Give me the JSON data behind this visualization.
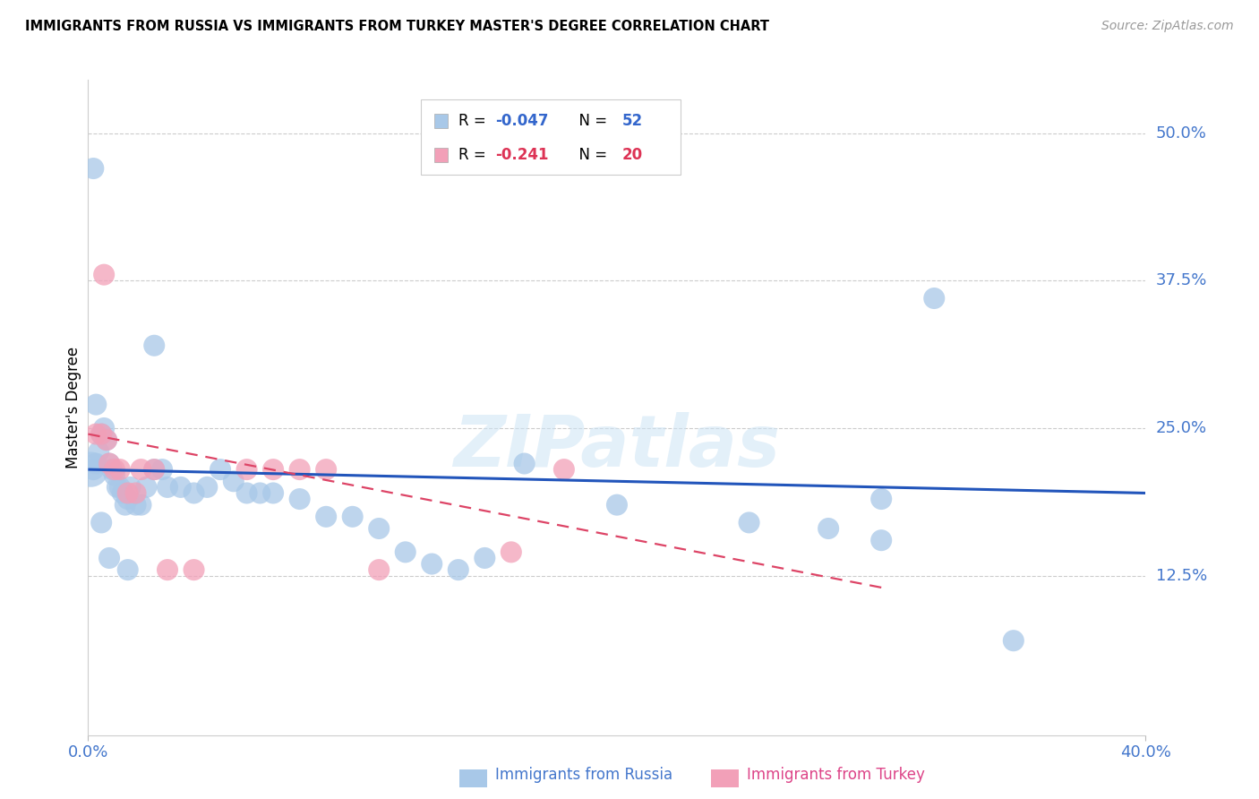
{
  "title": "IMMIGRANTS FROM RUSSIA VS IMMIGRANTS FROM TURKEY MASTER'S DEGREE CORRELATION CHART",
  "source": "Source: ZipAtlas.com",
  "ylabel": "Master's Degree",
  "right_yticks": [
    "50.0%",
    "37.5%",
    "25.0%",
    "12.5%"
  ],
  "right_ytick_vals": [
    0.5,
    0.375,
    0.25,
    0.125
  ],
  "russia_color": "#a8c8e8",
  "turkey_color": "#f2a0b8",
  "russia_line_color": "#2255bb",
  "turkey_line_color": "#dd4466",
  "watermark_text": "ZIPatlas",
  "xlim": [
    0.0,
    0.4
  ],
  "ylim": [
    -0.01,
    0.545
  ],
  "russia_R": -0.047,
  "russia_N": 52,
  "turkey_R": -0.241,
  "turkey_N": 20,
  "russia_x": [
    0.001,
    0.002,
    0.003,
    0.004,
    0.005,
    0.006,
    0.007,
    0.008,
    0.009,
    0.01,
    0.011,
    0.012,
    0.013,
    0.014,
    0.015,
    0.016,
    0.018,
    0.02,
    0.022,
    0.025,
    0.028,
    0.03,
    0.035,
    0.04,
    0.045,
    0.05,
    0.055,
    0.06,
    0.065,
    0.07,
    0.08,
    0.09,
    0.1,
    0.11,
    0.12,
    0.13,
    0.14,
    0.15,
    0.165,
    0.2,
    0.25,
    0.28,
    0.3,
    0.32,
    0.35,
    0.002,
    0.003,
    0.005,
    0.008,
    0.015,
    0.025,
    0.3
  ],
  "russia_y": [
    0.215,
    0.215,
    0.22,
    0.23,
    0.245,
    0.25,
    0.24,
    0.22,
    0.215,
    0.21,
    0.2,
    0.2,
    0.195,
    0.185,
    0.19,
    0.2,
    0.185,
    0.185,
    0.2,
    0.215,
    0.215,
    0.2,
    0.2,
    0.195,
    0.2,
    0.215,
    0.205,
    0.195,
    0.195,
    0.195,
    0.19,
    0.175,
    0.175,
    0.165,
    0.145,
    0.135,
    0.13,
    0.14,
    0.22,
    0.185,
    0.17,
    0.165,
    0.155,
    0.36,
    0.07,
    0.47,
    0.27,
    0.17,
    0.14,
    0.13,
    0.32,
    0.19
  ],
  "russia_sizes": [
    800,
    300,
    300,
    300,
    300,
    300,
    300,
    300,
    300,
    300,
    300,
    300,
    300,
    300,
    300,
    300,
    300,
    300,
    300,
    300,
    300,
    300,
    300,
    300,
    300,
    300,
    300,
    300,
    300,
    300,
    300,
    300,
    300,
    300,
    300,
    300,
    300,
    300,
    300,
    300,
    300,
    300,
    300,
    300,
    300,
    300,
    300,
    300,
    300,
    300,
    300,
    300
  ],
  "turkey_x": [
    0.003,
    0.005,
    0.006,
    0.007,
    0.008,
    0.01,
    0.012,
    0.015,
    0.018,
    0.02,
    0.025,
    0.03,
    0.04,
    0.06,
    0.07,
    0.08,
    0.09,
    0.11,
    0.16,
    0.18
  ],
  "turkey_y": [
    0.245,
    0.245,
    0.38,
    0.24,
    0.22,
    0.215,
    0.215,
    0.195,
    0.195,
    0.215,
    0.215,
    0.13,
    0.13,
    0.215,
    0.215,
    0.215,
    0.215,
    0.13,
    0.145,
    0.215
  ],
  "turkey_sizes": [
    300,
    300,
    300,
    300,
    300,
    300,
    300,
    300,
    300,
    300,
    300,
    300,
    300,
    300,
    300,
    300,
    300,
    300,
    300,
    300
  ],
  "russia_line_x": [
    0.0,
    0.4
  ],
  "russia_line_y": [
    0.215,
    0.195
  ],
  "turkey_line_x": [
    0.0,
    0.3
  ],
  "turkey_line_y": [
    0.245,
    0.115
  ],
  "legend_russia_label": "R = -0.047   N = 52",
  "legend_turkey_label": "R = -0.241   N = 20",
  "bottom_label_russia": "Immigrants from Russia",
  "bottom_label_turkey": "Immigrants from Turkey",
  "xtick_left": "0.0%",
  "xtick_right": "40.0%"
}
